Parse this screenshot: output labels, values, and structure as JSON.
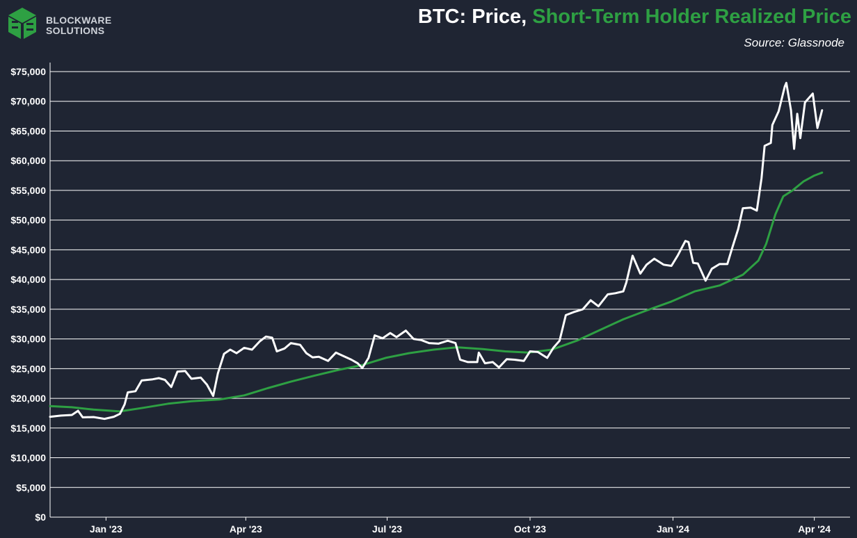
{
  "brand": {
    "line1": "BLOCKWARE",
    "line2": "SOLUTIONS",
    "logo_icon": "blockware-logo-icon"
  },
  "header": {
    "title_prefix": "BTC: Price, ",
    "title_highlight": "Short-Term Holder Realized Price",
    "source": "Source: Glassnode"
  },
  "colors": {
    "background": "#1f2533",
    "price": "#ffffff",
    "sth": "#2ea043",
    "grid": "#ffffff"
  },
  "chart_data": {
    "type": "line",
    "title": "BTC: Price, Short-Term Holder Realized Price",
    "xlabel": "",
    "ylabel": "",
    "ylim": [
      0,
      75000
    ],
    "xlim": [
      "2022-11-26",
      "2024-04-24"
    ],
    "grid": true,
    "legend": "none",
    "y_ticks": [
      {
        "value": 0,
        "label": "$0"
      },
      {
        "value": 5000,
        "label": "$5,000"
      },
      {
        "value": 10000,
        "label": "$10,000"
      },
      {
        "value": 15000,
        "label": "$15,000"
      },
      {
        "value": 20000,
        "label": "$20,000"
      },
      {
        "value": 25000,
        "label": "$25,000"
      },
      {
        "value": 30000,
        "label": "$30,000"
      },
      {
        "value": 35000,
        "label": "$35,000"
      },
      {
        "value": 40000,
        "label": "$40,000"
      },
      {
        "value": 45000,
        "label": "$45,000"
      },
      {
        "value": 50000,
        "label": "$50,000"
      },
      {
        "value": 55000,
        "label": "$55,000"
      },
      {
        "value": 60000,
        "label": "$60,000"
      },
      {
        "value": 65000,
        "label": "$65,000"
      },
      {
        "value": 70000,
        "label": "$70,000"
      },
      {
        "value": 75000,
        "label": "$75,000"
      }
    ],
    "x_ticks": [
      {
        "date": "2023-01-01",
        "label": "Jan '23"
      },
      {
        "date": "2023-04-01",
        "label": "Apr '23"
      },
      {
        "date": "2023-07-01",
        "label": "Jul '23"
      },
      {
        "date": "2023-10-01",
        "label": "Oct '23"
      },
      {
        "date": "2024-01-01",
        "label": "Jan '24"
      },
      {
        "date": "2024-04-01",
        "label": "Apr '24"
      }
    ],
    "series": [
      {
        "name": "Price",
        "color": "#ffffff",
        "points": [
          [
            "2022-11-26",
            16900
          ],
          [
            "2022-12-03",
            17100
          ],
          [
            "2022-12-10",
            17200
          ],
          [
            "2022-12-14",
            17900
          ],
          [
            "2022-12-17",
            16800
          ],
          [
            "2022-12-24",
            16850
          ],
          [
            "2022-12-31",
            16550
          ],
          [
            "2023-01-06",
            16900
          ],
          [
            "2023-01-10",
            17400
          ],
          [
            "2023-01-13",
            19000
          ],
          [
            "2023-01-15",
            21000
          ],
          [
            "2023-01-20",
            21200
          ],
          [
            "2023-01-24",
            23000
          ],
          [
            "2023-01-31",
            23200
          ],
          [
            "2023-02-04",
            23400
          ],
          [
            "2023-02-08",
            23100
          ],
          [
            "2023-02-12",
            21900
          ],
          [
            "2023-02-16",
            24500
          ],
          [
            "2023-02-21",
            24600
          ],
          [
            "2023-02-25",
            23300
          ],
          [
            "2023-03-03",
            23500
          ],
          [
            "2023-03-07",
            22300
          ],
          [
            "2023-03-11",
            20400
          ],
          [
            "2023-03-14",
            24200
          ],
          [
            "2023-03-18",
            27500
          ],
          [
            "2023-03-22",
            28200
          ],
          [
            "2023-03-26",
            27600
          ],
          [
            "2023-03-31",
            28500
          ],
          [
            "2023-04-05",
            28200
          ],
          [
            "2023-04-10",
            29600
          ],
          [
            "2023-04-14",
            30400
          ],
          [
            "2023-04-18",
            30200
          ],
          [
            "2023-04-21",
            27900
          ],
          [
            "2023-04-26",
            28400
          ],
          [
            "2023-04-30",
            29300
          ],
          [
            "2023-05-06",
            29000
          ],
          [
            "2023-05-10",
            27600
          ],
          [
            "2023-05-14",
            26900
          ],
          [
            "2023-05-18",
            27000
          ],
          [
            "2023-05-24",
            26300
          ],
          [
            "2023-05-29",
            27700
          ],
          [
            "2023-06-03",
            27100
          ],
          [
            "2023-06-08",
            26500
          ],
          [
            "2023-06-12",
            25900
          ],
          [
            "2023-06-15",
            25100
          ],
          [
            "2023-06-19",
            26800
          ],
          [
            "2023-06-21",
            28700
          ],
          [
            "2023-06-23",
            30600
          ],
          [
            "2023-06-28",
            30100
          ],
          [
            "2023-07-03",
            31000
          ],
          [
            "2023-07-07",
            30300
          ],
          [
            "2023-07-13",
            31400
          ],
          [
            "2023-07-18",
            30000
          ],
          [
            "2023-07-23",
            29800
          ],
          [
            "2023-07-28",
            29300
          ],
          [
            "2023-08-03",
            29200
          ],
          [
            "2023-08-09",
            29700
          ],
          [
            "2023-08-14",
            29300
          ],
          [
            "2023-08-17",
            26500
          ],
          [
            "2023-08-22",
            26100
          ],
          [
            "2023-08-28",
            26100
          ],
          [
            "2023-08-29",
            27700
          ],
          [
            "2023-09-02",
            25900
          ],
          [
            "2023-09-07",
            26100
          ],
          [
            "2023-09-11",
            25200
          ],
          [
            "2023-09-16",
            26600
          ],
          [
            "2023-09-21",
            26500
          ],
          [
            "2023-09-27",
            26300
          ],
          [
            "2023-10-01",
            27900
          ],
          [
            "2023-10-06",
            27800
          ],
          [
            "2023-10-12",
            26800
          ],
          [
            "2023-10-16",
            28500
          ],
          [
            "2023-10-20",
            29700
          ],
          [
            "2023-10-24",
            34000
          ],
          [
            "2023-10-29",
            34500
          ],
          [
            "2023-11-04",
            35000
          ],
          [
            "2023-11-09",
            36500
          ],
          [
            "2023-11-14",
            35500
          ],
          [
            "2023-11-20",
            37500
          ],
          [
            "2023-11-25",
            37700
          ],
          [
            "2023-11-30",
            38000
          ],
          [
            "2023-12-02",
            39500
          ],
          [
            "2023-12-06",
            44000
          ],
          [
            "2023-12-11",
            41000
          ],
          [
            "2023-12-15",
            42500
          ],
          [
            "2023-12-20",
            43500
          ],
          [
            "2023-12-26",
            42500
          ],
          [
            "2023-12-31",
            42300
          ],
          [
            "2024-01-04",
            44000
          ],
          [
            "2024-01-09",
            46500
          ],
          [
            "2024-01-11",
            46300
          ],
          [
            "2024-01-14",
            42800
          ],
          [
            "2024-01-17",
            42700
          ],
          [
            "2024-01-22",
            39800
          ],
          [
            "2024-01-26",
            41800
          ],
          [
            "2024-01-31",
            42600
          ],
          [
            "2024-02-05",
            42600
          ],
          [
            "2024-02-08",
            45200
          ],
          [
            "2024-02-12",
            48500
          ],
          [
            "2024-02-15",
            52000
          ],
          [
            "2024-02-20",
            52100
          ],
          [
            "2024-02-24",
            51600
          ],
          [
            "2024-02-27",
            57000
          ],
          [
            "2024-02-29",
            62500
          ],
          [
            "2024-03-04",
            63000
          ],
          [
            "2024-03-05",
            66000
          ],
          [
            "2024-03-09",
            68300
          ],
          [
            "2024-03-13",
            72500
          ],
          [
            "2024-03-14",
            73100
          ],
          [
            "2024-03-17",
            68500
          ],
          [
            "2024-03-19",
            62000
          ],
          [
            "2024-03-21",
            67900
          ],
          [
            "2024-03-23",
            63800
          ],
          [
            "2024-03-26",
            69800
          ],
          [
            "2024-03-31",
            71300
          ],
          [
            "2024-04-03",
            65500
          ],
          [
            "2024-04-06",
            68500
          ]
        ]
      },
      {
        "name": "Short-Term Holder Realized Price",
        "color": "#2ea043",
        "points": [
          [
            "2022-11-26",
            18700
          ],
          [
            "2022-12-10",
            18500
          ],
          [
            "2022-12-24",
            18100
          ],
          [
            "2023-01-10",
            17800
          ],
          [
            "2023-01-25",
            18400
          ],
          [
            "2023-02-10",
            19100
          ],
          [
            "2023-02-25",
            19500
          ],
          [
            "2023-03-15",
            19800
          ],
          [
            "2023-03-31",
            20500
          ],
          [
            "2023-04-15",
            21700
          ],
          [
            "2023-04-30",
            22800
          ],
          [
            "2023-05-15",
            23800
          ],
          [
            "2023-05-31",
            24800
          ],
          [
            "2023-06-15",
            25600
          ],
          [
            "2023-06-30",
            26800
          ],
          [
            "2023-07-15",
            27600
          ],
          [
            "2023-07-31",
            28200
          ],
          [
            "2023-08-15",
            28600
          ],
          [
            "2023-08-31",
            28300
          ],
          [
            "2023-09-15",
            27900
          ],
          [
            "2023-09-30",
            27700
          ],
          [
            "2023-10-15",
            28200
          ],
          [
            "2023-10-31",
            29700
          ],
          [
            "2023-11-15",
            31500
          ],
          [
            "2023-11-30",
            33300
          ],
          [
            "2023-12-15",
            34800
          ],
          [
            "2023-12-31",
            36300
          ],
          [
            "2024-01-15",
            38000
          ],
          [
            "2024-01-31",
            39000
          ],
          [
            "2024-02-15",
            40800
          ],
          [
            "2024-02-25",
            43200
          ],
          [
            "2024-03-01",
            46000
          ],
          [
            "2024-03-07",
            51000
          ],
          [
            "2024-03-12",
            54000
          ],
          [
            "2024-03-18",
            55000
          ],
          [
            "2024-03-25",
            56500
          ],
          [
            "2024-04-01",
            57500
          ],
          [
            "2024-04-06",
            58000
          ]
        ]
      }
    ]
  }
}
